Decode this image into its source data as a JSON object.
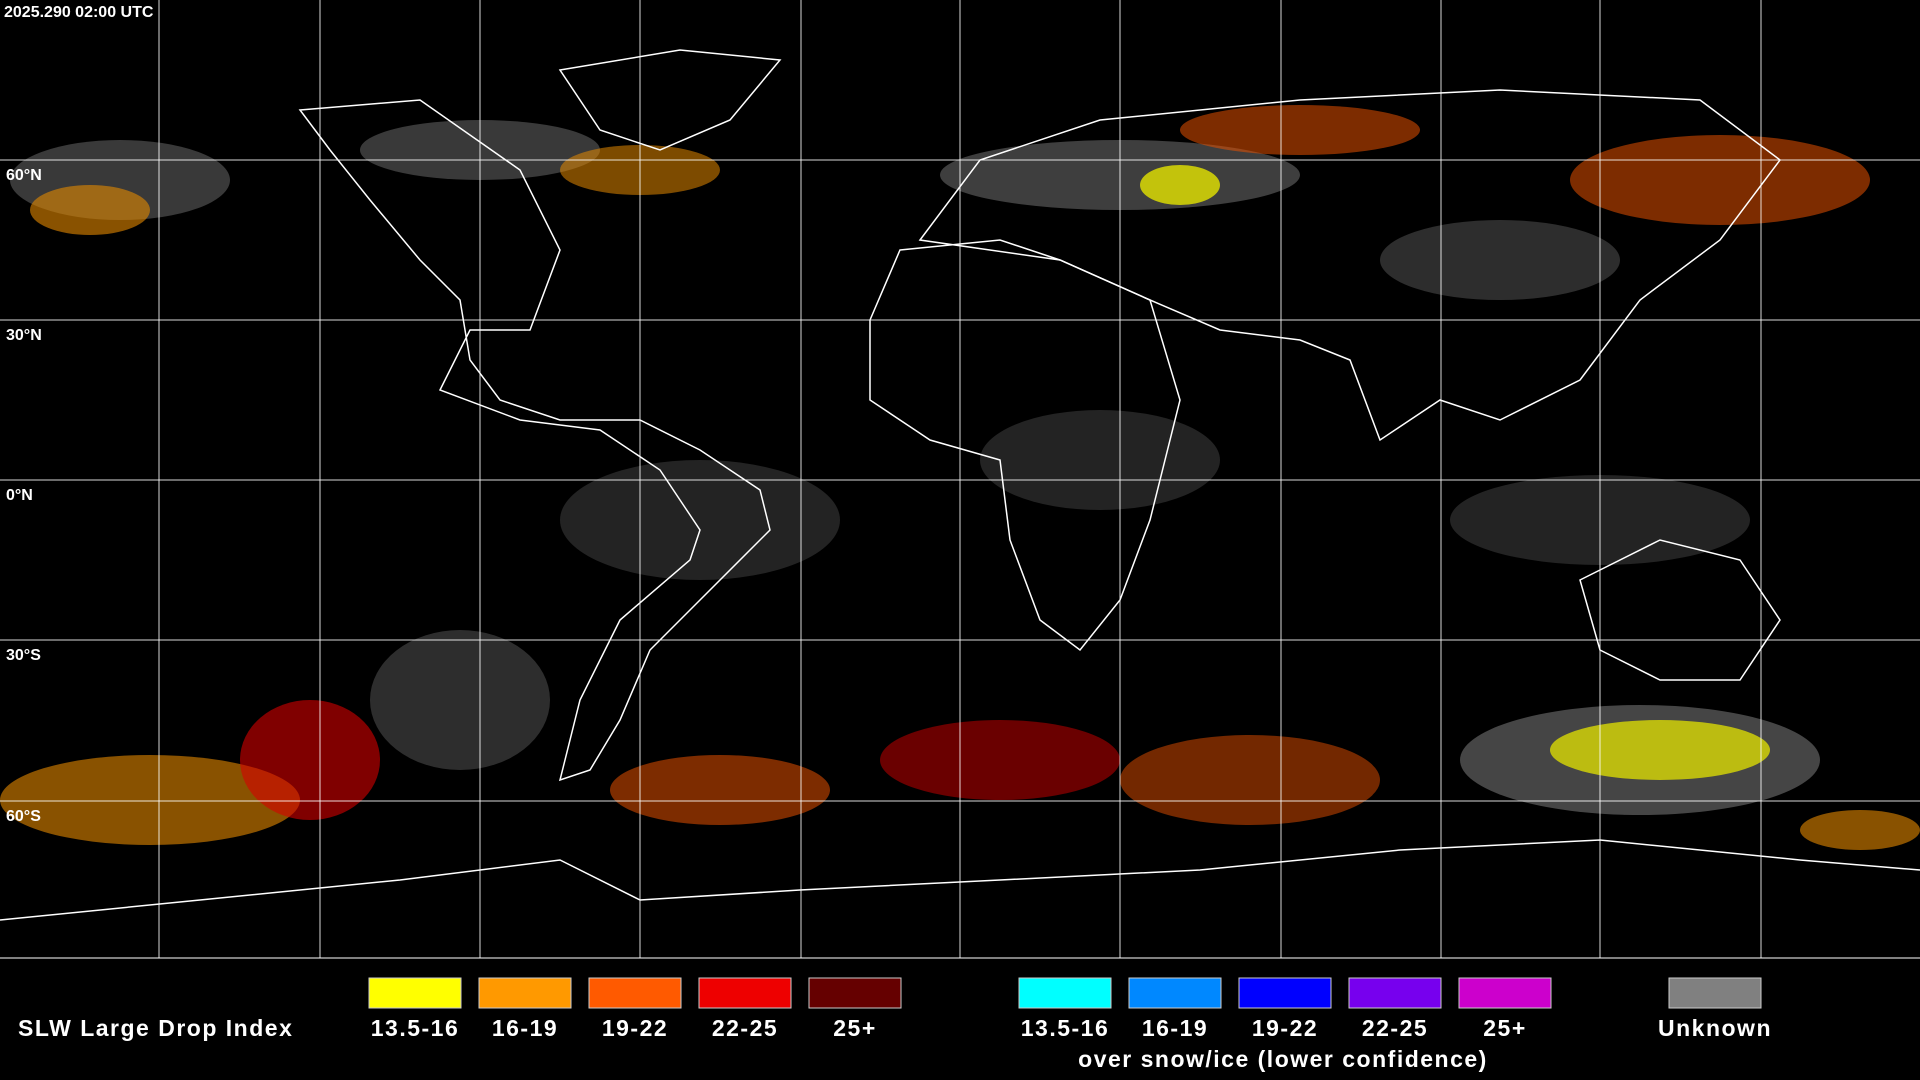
{
  "header": {
    "timestamp": "2025.290 02:00 UTC"
  },
  "map": {
    "latitude_labels": [
      "60°N",
      "30°N",
      "0°N",
      "30°S",
      "60°S"
    ]
  },
  "legend": {
    "title": "SLW Large Drop Index",
    "items": [
      {
        "label": "13.5-16",
        "color": "#ffff00"
      },
      {
        "label": "16-19",
        "color": "#ff9900"
      },
      {
        "label": "19-22",
        "color": "#ff5a00"
      },
      {
        "label": "22-25",
        "color": "#ee0000"
      },
      {
        "label": "25+",
        "color": "#650000"
      }
    ],
    "snow_ice_items": [
      {
        "label": "13.5-16",
        "color": "#00ffff"
      },
      {
        "label": "16-19",
        "color": "#0088ff"
      },
      {
        "label": "19-22",
        "color": "#0000ff"
      },
      {
        "label": "22-25",
        "color": "#7700ee"
      },
      {
        "label": "25+",
        "color": "#cc00cc"
      }
    ],
    "snow_ice_caption": "over snow/ice (lower confidence)",
    "unknown": {
      "label": "Unknown",
      "color": "#808080"
    }
  }
}
